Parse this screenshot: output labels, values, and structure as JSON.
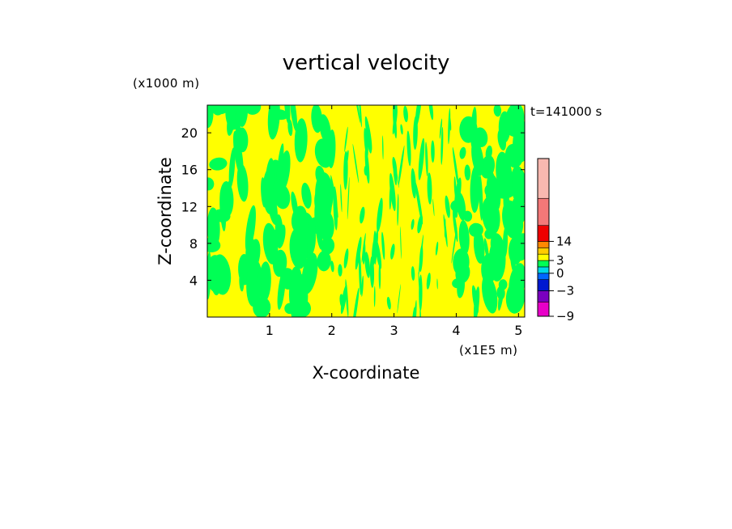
{
  "chart_data": {
    "type": "heatmap",
    "title": "vertical velocity",
    "xlabel": "X-coordinate",
    "ylabel": "Z-coordinate",
    "x_unit": "(x1E5 m)",
    "y_unit": "(x1000 m)",
    "time_label": "t=141000 s",
    "xlim": [
      0,
      5.1
    ],
    "ylim": [
      0,
      23
    ],
    "x_ticks": [
      1,
      2,
      3,
      4,
      5
    ],
    "x_tick_labels": [
      "1",
      "2",
      "3",
      "4",
      "5"
    ],
    "y_ticks": [
      4,
      8,
      12,
      16,
      20
    ],
    "y_tick_labels": [
      "4",
      "8",
      "12",
      "16",
      "20"
    ],
    "dominant_colors": {
      "positive": "#ffff00",
      "negative": "#00ff55"
    },
    "colorbar": {
      "levels": [
        -9,
        -6,
        -3,
        -1.5,
        0,
        1.5,
        3,
        4.5,
        7,
        14,
        21,
        24
      ],
      "colors": [
        "#e800c8",
        "#7a00c0",
        "#0018d0",
        "#0066ff",
        "#00d8e8",
        "#00ff55",
        "#ffff00",
        "#ffcc00",
        "#ff8800",
        "#ee0000",
        "#f37878",
        "#f8b8b0"
      ],
      "labels": [
        {
          "value": 14,
          "text": "14"
        },
        {
          "value": 3,
          "text": "3"
        },
        {
          "value": 0,
          "text": "0"
        },
        {
          "value": -3,
          "text": "−3"
        },
        {
          "value": -9,
          "text": "−9"
        }
      ]
    }
  }
}
